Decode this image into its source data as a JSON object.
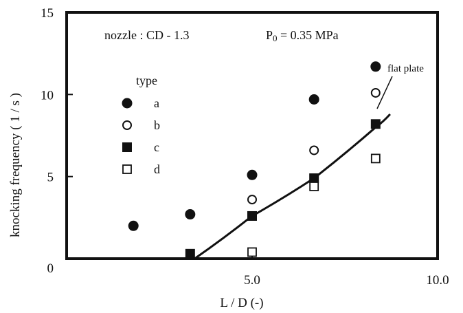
{
  "chart_data": {
    "type": "scatter",
    "xlabel": "L / D   (-)",
    "ylabel": "knocking  frequency   ( 1 / s )",
    "xlim": [
      0,
      10.0
    ],
    "ylim": [
      0,
      15
    ],
    "x_tick_labels": [
      "0",
      "5.0",
      "10.0"
    ],
    "y_tick_labels": [
      "0",
      "5",
      "10",
      "15"
    ],
    "annotations": {
      "nozzle": "nozzle : CD - 1.3",
      "pressure_main": "P",
      "pressure_sub": "0",
      "pressure_rest": " = 0.35 MPa",
      "curve_label": "flat plate"
    },
    "legend_title": "type",
    "series": [
      {
        "name": "a",
        "marker": "filled-circle",
        "x": [
          1.8,
          3.33,
          5.0,
          6.67,
          8.33
        ],
        "y": [
          2.0,
          2.7,
          5.1,
          9.7,
          11.7
        ]
      },
      {
        "name": "b",
        "marker": "open-circle",
        "x": [
          5.0,
          6.67,
          8.33
        ],
        "y": [
          3.6,
          6.6,
          10.1
        ]
      },
      {
        "name": "c",
        "marker": "filled-square",
        "x": [
          3.33,
          5.0,
          6.67,
          8.33
        ],
        "y": [
          0.3,
          2.6,
          4.9,
          8.2
        ]
      },
      {
        "name": "d",
        "marker": "open-square",
        "x": [
          5.0,
          6.67,
          8.33
        ],
        "y": [
          0.4,
          4.4,
          6.1
        ]
      }
    ],
    "curve": {
      "x": [
        3.45,
        5.0,
        6.67,
        8.33,
        8.72
      ],
      "y": [
        0.0,
        2.6,
        4.9,
        8.0,
        8.8
      ]
    },
    "grid": false,
    "legend_placement": "upper-left inside plot"
  }
}
